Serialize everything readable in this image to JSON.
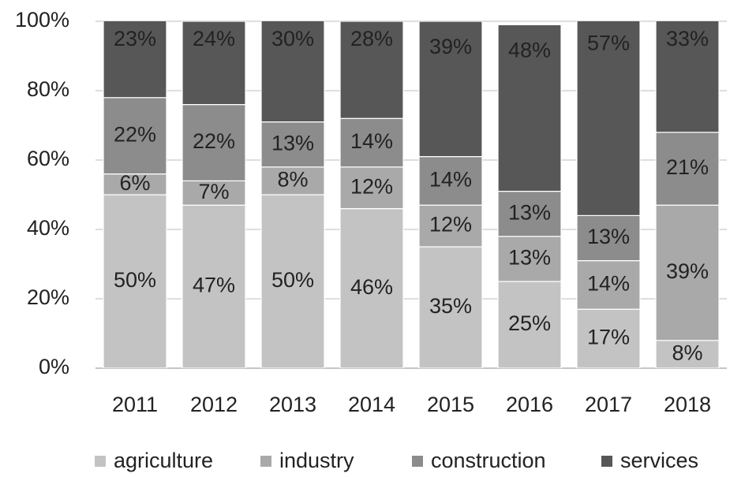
{
  "chart_data": {
    "type": "stacked_bar",
    "categories": [
      "2011",
      "2012",
      "2013",
      "2014",
      "2015",
      "2016",
      "2017",
      "2018"
    ],
    "series": [
      {
        "name": "agriculture",
        "color": "#c3c3c3",
        "values": [
          50,
          47,
          50,
          46,
          35,
          25,
          17,
          8
        ],
        "value_labels": [
          "50%",
          "47%",
          "50%",
          "46%",
          "35%",
          "25%",
          "17%",
          "8%"
        ]
      },
      {
        "name": "industry",
        "color": "#a9a9a9",
        "values": [
          6,
          7,
          8,
          12,
          12,
          13,
          14,
          39
        ],
        "value_labels": [
          "6%",
          "7%",
          "8%",
          "12%",
          "12%",
          "13%",
          "14%",
          "39%"
        ]
      },
      {
        "name": "construction",
        "color": "#8c8c8c",
        "values": [
          22,
          22,
          13,
          14,
          14,
          13,
          13,
          21
        ],
        "value_labels": [
          "22%",
          "22%",
          "13%",
          "14%",
          "14%",
          "13%",
          "13%",
          "21%"
        ]
      },
      {
        "name": "services",
        "color": "#575757",
        "values": [
          23,
          24,
          30,
          28,
          39,
          48,
          57,
          33
        ],
        "value_labels": [
          "23%",
          "24%",
          "30%",
          "28%",
          "39%",
          "48%",
          "57%",
          "33%"
        ]
      }
    ],
    "ylim": [
      0,
      100
    ],
    "yticks": [
      {
        "value": 0,
        "label": "0%"
      },
      {
        "value": 20,
        "label": "20%"
      },
      {
        "value": 40,
        "label": "40%"
      },
      {
        "value": 60,
        "label": "60%"
      },
      {
        "value": 80,
        "label": "80%"
      },
      {
        "value": 100,
        "label": "100%"
      }
    ],
    "grid": true,
    "legend": "bottom"
  }
}
